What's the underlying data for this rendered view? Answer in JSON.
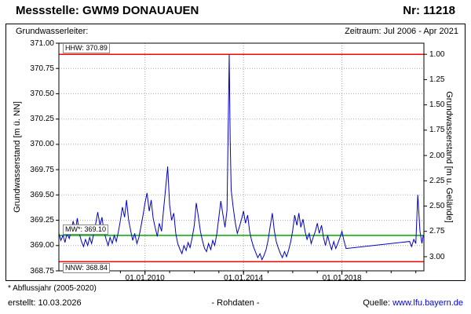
{
  "header": {
    "station_label": "Messstelle: GWM9 DONAUAUEN",
    "number_label": "Nr: 11218",
    "aquifer_label": "Grundwasserleiter:",
    "period_label": "Zeitraum: Jul 2006 - Apr 2021"
  },
  "footer": {
    "footnote": "* Abflussjahr (2005-2020)",
    "created": "erstellt: 10.03.2026",
    "data_type": "- Rohdaten -",
    "source_label": "Quelle:",
    "source_link": "www.lfu.bayern.de",
    "link_color": "#0000ee"
  },
  "chart_data": {
    "type": "line",
    "title": "",
    "grid": true,
    "x_axis": {
      "xmin": 2006.5,
      "xmax": 2021.33,
      "ticks": [
        {
          "x": 2010.0,
          "label": "01.01.2010"
        },
        {
          "x": 2014.0,
          "label": "01.01.2014"
        },
        {
          "x": 2018.0,
          "label": "01.01.2018"
        }
      ]
    },
    "y_axis_left": {
      "label": "Grundwasserstand [m ü. NN]",
      "ymin": 368.75,
      "ymax": 371.0,
      "tick_step": 0.25
    },
    "y_axis_right": {
      "label": "Grundwasserstand [m u. Gelände]",
      "ground_elevation": 371.89,
      "tick_min": 1.0,
      "tick_max": 3.0,
      "tick_step": 0.25
    },
    "ref_lines": [
      {
        "name": "HHW",
        "value": 370.89,
        "color": "#ff0000",
        "label": "HHW: 370.89",
        "label_position": "above"
      },
      {
        "name": "MW",
        "value": 369.1,
        "color": "#00aa00",
        "label": "MW*: 369.10",
        "label_position": "above"
      },
      {
        "name": "NNW",
        "value": 368.84,
        "color": "#ff0000",
        "label": "NNW: 368.84",
        "label_position": "below"
      }
    ],
    "series": [
      {
        "name": "Grundwasserstand Rohdaten",
        "color": "#0000cc",
        "points": [
          [
            2006.5,
            369.12
          ],
          [
            2006.58,
            369.05
          ],
          [
            2006.67,
            369.1
          ],
          [
            2006.75,
            369.03
          ],
          [
            2006.83,
            369.12
          ],
          [
            2006.92,
            369.07
          ],
          [
            2007.0,
            369.15
          ],
          [
            2007.08,
            369.24
          ],
          [
            2007.17,
            369.15
          ],
          [
            2007.25,
            369.27
          ],
          [
            2007.33,
            369.12
          ],
          [
            2007.42,
            369.04
          ],
          [
            2007.5,
            368.99
          ],
          [
            2007.58,
            369.06
          ],
          [
            2007.67,
            369.0
          ],
          [
            2007.75,
            369.08
          ],
          [
            2007.83,
            369.02
          ],
          [
            2007.92,
            369.12
          ],
          [
            2008.0,
            369.22
          ],
          [
            2008.08,
            369.33
          ],
          [
            2008.17,
            369.2
          ],
          [
            2008.25,
            369.28
          ],
          [
            2008.33,
            369.14
          ],
          [
            2008.42,
            369.06
          ],
          [
            2008.5,
            369.0
          ],
          [
            2008.58,
            369.08
          ],
          [
            2008.67,
            369.02
          ],
          [
            2008.75,
            369.1
          ],
          [
            2008.83,
            369.04
          ],
          [
            2008.92,
            369.14
          ],
          [
            2009.0,
            369.25
          ],
          [
            2009.08,
            369.38
          ],
          [
            2009.17,
            369.28
          ],
          [
            2009.25,
            369.45
          ],
          [
            2009.33,
            369.26
          ],
          [
            2009.42,
            369.14
          ],
          [
            2009.5,
            369.05
          ],
          [
            2009.58,
            369.12
          ],
          [
            2009.67,
            369.02
          ],
          [
            2009.75,
            369.08
          ],
          [
            2009.83,
            369.18
          ],
          [
            2009.92,
            369.3
          ],
          [
            2010.0,
            369.42
          ],
          [
            2010.08,
            369.52
          ],
          [
            2010.17,
            369.34
          ],
          [
            2010.25,
            369.45
          ],
          [
            2010.33,
            369.27
          ],
          [
            2010.42,
            369.17
          ],
          [
            2010.5,
            369.09
          ],
          [
            2010.58,
            369.22
          ],
          [
            2010.67,
            369.14
          ],
          [
            2010.75,
            369.35
          ],
          [
            2010.83,
            369.55
          ],
          [
            2010.92,
            369.78
          ],
          [
            2011.0,
            369.4
          ],
          [
            2011.08,
            369.25
          ],
          [
            2011.17,
            369.32
          ],
          [
            2011.25,
            369.12
          ],
          [
            2011.33,
            369.02
          ],
          [
            2011.42,
            368.96
          ],
          [
            2011.5,
            368.92
          ],
          [
            2011.58,
            369.0
          ],
          [
            2011.67,
            368.95
          ],
          [
            2011.75,
            369.03
          ],
          [
            2011.83,
            368.98
          ],
          [
            2011.92,
            369.08
          ],
          [
            2012.0,
            369.2
          ],
          [
            2012.08,
            369.42
          ],
          [
            2012.17,
            369.28
          ],
          [
            2012.25,
            369.14
          ],
          [
            2012.33,
            369.05
          ],
          [
            2012.42,
            368.97
          ],
          [
            2012.5,
            368.94
          ],
          [
            2012.58,
            369.02
          ],
          [
            2012.67,
            368.96
          ],
          [
            2012.75,
            369.05
          ],
          [
            2012.83,
            369.0
          ],
          [
            2012.92,
            369.12
          ],
          [
            2013.0,
            369.28
          ],
          [
            2013.08,
            369.44
          ],
          [
            2013.17,
            369.3
          ],
          [
            2013.25,
            369.18
          ],
          [
            2013.33,
            369.35
          ],
          [
            2013.42,
            370.89
          ],
          [
            2013.46,
            370.05
          ],
          [
            2013.5,
            369.55
          ],
          [
            2013.58,
            369.38
          ],
          [
            2013.67,
            369.22
          ],
          [
            2013.75,
            369.12
          ],
          [
            2013.83,
            369.18
          ],
          [
            2013.92,
            369.26
          ],
          [
            2014.0,
            369.34
          ],
          [
            2014.08,
            369.22
          ],
          [
            2014.17,
            369.3
          ],
          [
            2014.25,
            369.14
          ],
          [
            2014.33,
            369.05
          ],
          [
            2014.42,
            368.98
          ],
          [
            2014.5,
            368.93
          ],
          [
            2014.58,
            368.88
          ],
          [
            2014.67,
            368.92
          ],
          [
            2014.75,
            368.86
          ],
          [
            2014.83,
            368.9
          ],
          [
            2014.92,
            368.96
          ],
          [
            2015.0,
            369.05
          ],
          [
            2015.08,
            369.18
          ],
          [
            2015.17,
            369.32
          ],
          [
            2015.25,
            369.15
          ],
          [
            2015.33,
            369.04
          ],
          [
            2015.42,
            368.97
          ],
          [
            2015.5,
            368.92
          ],
          [
            2015.58,
            368.88
          ],
          [
            2015.67,
            368.94
          ],
          [
            2015.75,
            368.89
          ],
          [
            2015.83,
            368.95
          ],
          [
            2015.92,
            369.04
          ],
          [
            2016.0,
            369.15
          ],
          [
            2016.08,
            369.3
          ],
          [
            2016.17,
            369.2
          ],
          [
            2016.25,
            369.32
          ],
          [
            2016.33,
            369.18
          ],
          [
            2016.42,
            369.26
          ],
          [
            2016.5,
            369.14
          ],
          [
            2016.58,
            369.06
          ],
          [
            2016.67,
            369.12
          ],
          [
            2016.75,
            369.02
          ],
          [
            2016.83,
            369.08
          ],
          [
            2016.92,
            369.14
          ],
          [
            2017.0,
            369.22
          ],
          [
            2017.08,
            369.12
          ],
          [
            2017.17,
            369.2
          ],
          [
            2017.25,
            369.08
          ],
          [
            2017.33,
            369.0
          ],
          [
            2017.42,
            369.1
          ],
          [
            2017.5,
            369.02
          ],
          [
            2017.58,
            368.96
          ],
          [
            2017.67,
            369.04
          ],
          [
            2017.75,
            368.97
          ],
          [
            2017.83,
            369.02
          ],
          [
            2017.92,
            369.08
          ],
          [
            2018.0,
            369.14
          ],
          [
            2018.08,
            369.05
          ],
          [
            2018.17,
            368.97
          ],
          [
            2020.75,
            369.04
          ],
          [
            2020.83,
            368.99
          ],
          [
            2020.92,
            369.06
          ],
          [
            2021.0,
            369.02
          ],
          [
            2021.08,
            369.5
          ],
          [
            2021.17,
            369.14
          ],
          [
            2021.25,
            369.02
          ],
          [
            2021.3,
            369.1
          ]
        ]
      }
    ]
  }
}
